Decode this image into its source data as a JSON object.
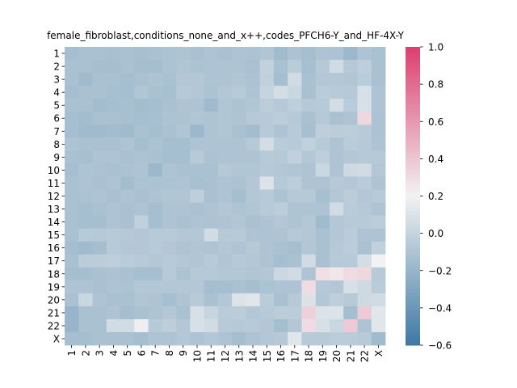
{
  "chart_data": {
    "type": "heatmap",
    "title": "female_fibroblast,conditions_none_and_x++,codes_PFCH6-Y_and_HF-4X-Y",
    "xlabel": "",
    "ylabel": "",
    "x_categories": [
      "1",
      "2",
      "3",
      "4",
      "5",
      "6",
      "7",
      "8",
      "9",
      "10",
      "11",
      "12",
      "13",
      "14",
      "15",
      "16",
      "17",
      "18",
      "19",
      "20",
      "21",
      "22",
      "X"
    ],
    "y_categories": [
      "1",
      "2",
      "3",
      "4",
      "5",
      "6",
      "7",
      "8",
      "9",
      "10",
      "11",
      "12",
      "13",
      "14",
      "15",
      "16",
      "17",
      "18",
      "19",
      "20",
      "21",
      "22",
      "X"
    ],
    "colorbar": {
      "min": -0.6,
      "max": 1.0,
      "ticks": [
        "1.0",
        "0.8",
        "0.6",
        "0.4",
        "0.2",
        "0.0",
        "−0.2",
        "−0.4",
        "−0.6"
      ]
    },
    "colormap": {
      "low": "#3d78a3",
      "mid": "#f2f2f2",
      "high": "#dc3f6f"
    },
    "values": [
      [
        -0.14,
        -0.12,
        -0.12,
        -0.13,
        -0.12,
        -0.13,
        -0.12,
        -0.11,
        -0.1,
        -0.12,
        -0.1,
        -0.12,
        -0.1,
        -0.11,
        -0.09,
        -0.16,
        -0.11,
        -0.14,
        -0.1,
        -0.11,
        -0.18,
        -0.1,
        -0.12
      ],
      [
        -0.12,
        -0.12,
        -0.14,
        -0.14,
        -0.12,
        -0.14,
        -0.14,
        -0.11,
        -0.09,
        -0.11,
        -0.1,
        -0.1,
        -0.1,
        -0.12,
        -0.01,
        -0.12,
        -0.05,
        -0.13,
        -0.07,
        0.05,
        -0.07,
        -0.03,
        -0.12
      ],
      [
        -0.12,
        -0.16,
        -0.12,
        -0.12,
        -0.14,
        -0.12,
        -0.1,
        -0.12,
        -0.08,
        -0.08,
        -0.1,
        -0.1,
        -0.09,
        -0.11,
        -0.02,
        -0.14,
        0.05,
        -0.12,
        -0.08,
        -0.08,
        -0.09,
        -0.05,
        -0.12
      ],
      [
        -0.14,
        -0.12,
        -0.12,
        -0.13,
        -0.14,
        -0.09,
        -0.12,
        -0.13,
        -0.07,
        -0.08,
        -0.11,
        -0.08,
        -0.06,
        -0.1,
        0.0,
        0.06,
        0.02,
        -0.12,
        -0.05,
        -0.06,
        -0.07,
        0.08,
        -0.1
      ],
      [
        -0.12,
        -0.12,
        -0.15,
        -0.14,
        -0.13,
        -0.15,
        -0.14,
        -0.12,
        -0.1,
        -0.1,
        -0.16,
        -0.09,
        -0.11,
        -0.09,
        -0.04,
        -0.07,
        -0.03,
        -0.07,
        -0.06,
        0.06,
        -0.05,
        0.08,
        -0.1
      ],
      [
        -0.14,
        -0.15,
        -0.12,
        -0.12,
        -0.13,
        -0.14,
        -0.13,
        -0.11,
        -0.11,
        -0.09,
        -0.1,
        -0.09,
        -0.1,
        -0.07,
        -0.06,
        -0.04,
        -0.07,
        -0.12,
        -0.07,
        -0.12,
        -0.1,
        0.32,
        -0.11
      ],
      [
        -0.14,
        -0.16,
        -0.16,
        -0.15,
        -0.16,
        -0.12,
        -0.14,
        -0.12,
        -0.09,
        -0.18,
        -0.1,
        -0.09,
        -0.12,
        -0.15,
        -0.06,
        -0.1,
        -0.06,
        -0.13,
        -0.03,
        -0.04,
        -0.04,
        -0.06,
        -0.11
      ],
      [
        -0.1,
        -0.12,
        -0.12,
        -0.12,
        -0.1,
        -0.14,
        -0.11,
        -0.14,
        -0.14,
        -0.1,
        -0.1,
        -0.1,
        -0.1,
        -0.07,
        0.06,
        -0.05,
        -0.06,
        -0.02,
        -0.06,
        -0.1,
        -0.05,
        -0.07,
        -0.1
      ],
      [
        -0.12,
        -0.13,
        -0.1,
        -0.1,
        -0.12,
        -0.11,
        -0.12,
        -0.14,
        -0.14,
        -0.06,
        -0.11,
        -0.1,
        -0.1,
        -0.1,
        -0.06,
        -0.07,
        -0.02,
        -0.08,
        -0.03,
        -0.1,
        -0.08,
        -0.07,
        -0.07
      ],
      [
        -0.14,
        -0.1,
        -0.11,
        -0.12,
        -0.11,
        -0.1,
        -0.18,
        -0.1,
        -0.12,
        -0.12,
        -0.12,
        -0.07,
        -0.09,
        -0.09,
        -0.07,
        -0.08,
        -0.09,
        -0.1,
        0.02,
        -0.1,
        0.04,
        0.05,
        -0.08
      ],
      [
        -0.12,
        -0.1,
        -0.12,
        -0.1,
        -0.15,
        -0.11,
        -0.11,
        -0.11,
        -0.1,
        -0.13,
        -0.12,
        -0.1,
        -0.11,
        -0.08,
        0.1,
        -0.07,
        -0.04,
        -0.1,
        -0.1,
        -0.07,
        -0.08,
        -0.05,
        -0.1
      ],
      [
        -0.12,
        -0.11,
        -0.1,
        -0.12,
        -0.1,
        -0.12,
        -0.1,
        -0.09,
        -0.09,
        -0.03,
        -0.12,
        -0.1,
        -0.14,
        -0.08,
        -0.06,
        -0.11,
        -0.07,
        -0.07,
        -0.13,
        -0.08,
        -0.04,
        -0.08,
        -0.06
      ],
      [
        -0.12,
        -0.14,
        -0.12,
        -0.1,
        -0.12,
        -0.1,
        -0.14,
        -0.1,
        -0.1,
        -0.12,
        -0.1,
        -0.08,
        -0.1,
        -0.09,
        -0.06,
        -0.04,
        -0.1,
        -0.1,
        -0.1,
        0.05,
        -0.05,
        -0.07,
        -0.1
      ],
      [
        -0.12,
        -0.14,
        -0.14,
        -0.1,
        -0.12,
        -0.02,
        -0.14,
        -0.1,
        -0.12,
        -0.1,
        -0.11,
        -0.1,
        -0.09,
        -0.12,
        -0.1,
        -0.08,
        -0.1,
        -0.08,
        -0.16,
        -0.08,
        -0.06,
        -0.06,
        -0.04
      ],
      [
        -0.12,
        -0.06,
        -0.07,
        -0.06,
        -0.07,
        -0.08,
        -0.06,
        -0.06,
        -0.08,
        -0.08,
        0.05,
        -0.07,
        -0.06,
        -0.1,
        -0.1,
        -0.1,
        -0.07,
        -0.08,
        -0.12,
        -0.08,
        -0.05,
        -0.1,
        -0.1
      ],
      [
        -0.14,
        -0.16,
        -0.14,
        -0.06,
        -0.08,
        -0.08,
        -0.06,
        -0.08,
        -0.1,
        -0.09,
        -0.1,
        -0.08,
        -0.1,
        -0.07,
        -0.1,
        -0.12,
        -0.14,
        -0.08,
        -0.12,
        -0.07,
        -0.04,
        -0.12,
        -0.02
      ],
      [
        -0.12,
        -0.04,
        -0.04,
        -0.03,
        -0.05,
        -0.06,
        -0.08,
        -0.06,
        -0.08,
        -0.09,
        -0.06,
        -0.09,
        -0.07,
        -0.08,
        -0.1,
        -0.14,
        -0.12,
        0.05,
        -0.12,
        -0.06,
        -0.06,
        0.06,
        0.2
      ],
      [
        -0.14,
        -0.14,
        -0.12,
        -0.11,
        -0.12,
        -0.14,
        -0.14,
        -0.06,
        -0.11,
        -0.07,
        -0.07,
        -0.08,
        -0.08,
        -0.09,
        -0.08,
        0.03,
        0.05,
        -0.1,
        0.28,
        0.25,
        0.3,
        0.32,
        -0.06
      ],
      [
        -0.1,
        -0.1,
        -0.12,
        -0.1,
        -0.11,
        -0.08,
        -0.08,
        -0.08,
        -0.08,
        -0.08,
        -0.14,
        -0.14,
        -0.12,
        -0.14,
        -0.11,
        -0.1,
        -0.1,
        0.3,
        -0.07,
        -0.08,
        0.08,
        0.04,
        -0.05
      ],
      [
        -0.12,
        0.02,
        -0.1,
        -0.12,
        -0.12,
        -0.09,
        -0.1,
        -0.13,
        -0.1,
        -0.06,
        -0.12,
        -0.08,
        0.1,
        0.12,
        -0.05,
        -0.12,
        -0.07,
        0.1,
        -0.08,
        -0.03,
        -0.06,
        0.04,
        0.05
      ],
      [
        -0.2,
        -0.12,
        -0.12,
        -0.1,
        -0.14,
        -0.12,
        -0.1,
        -0.08,
        -0.12,
        0.08,
        0.01,
        -0.05,
        -0.04,
        -0.08,
        -0.06,
        -0.04,
        -0.04,
        0.35,
        0.1,
        0.1,
        -0.14,
        0.38,
        0.12
      ],
      [
        -0.2,
        -0.12,
        -0.12,
        0.05,
        0.05,
        0.18,
        -0.06,
        -0.03,
        -0.08,
        0.08,
        0.05,
        -0.06,
        -0.07,
        -0.06,
        -0.08,
        -0.14,
        -0.08,
        0.3,
        0.08,
        0.02,
        0.38,
        -0.1,
        0.12
      ],
      [
        -0.14,
        -0.14,
        -0.12,
        -0.12,
        -0.12,
        -0.14,
        -0.1,
        -0.1,
        -0.08,
        -0.1,
        -0.08,
        -0.1,
        -0.14,
        -0.1,
        -0.08,
        -0.07,
        0.12,
        -0.06,
        -0.06,
        -0.04,
        -0.05,
        -0.06,
        -0.16
      ]
    ]
  }
}
